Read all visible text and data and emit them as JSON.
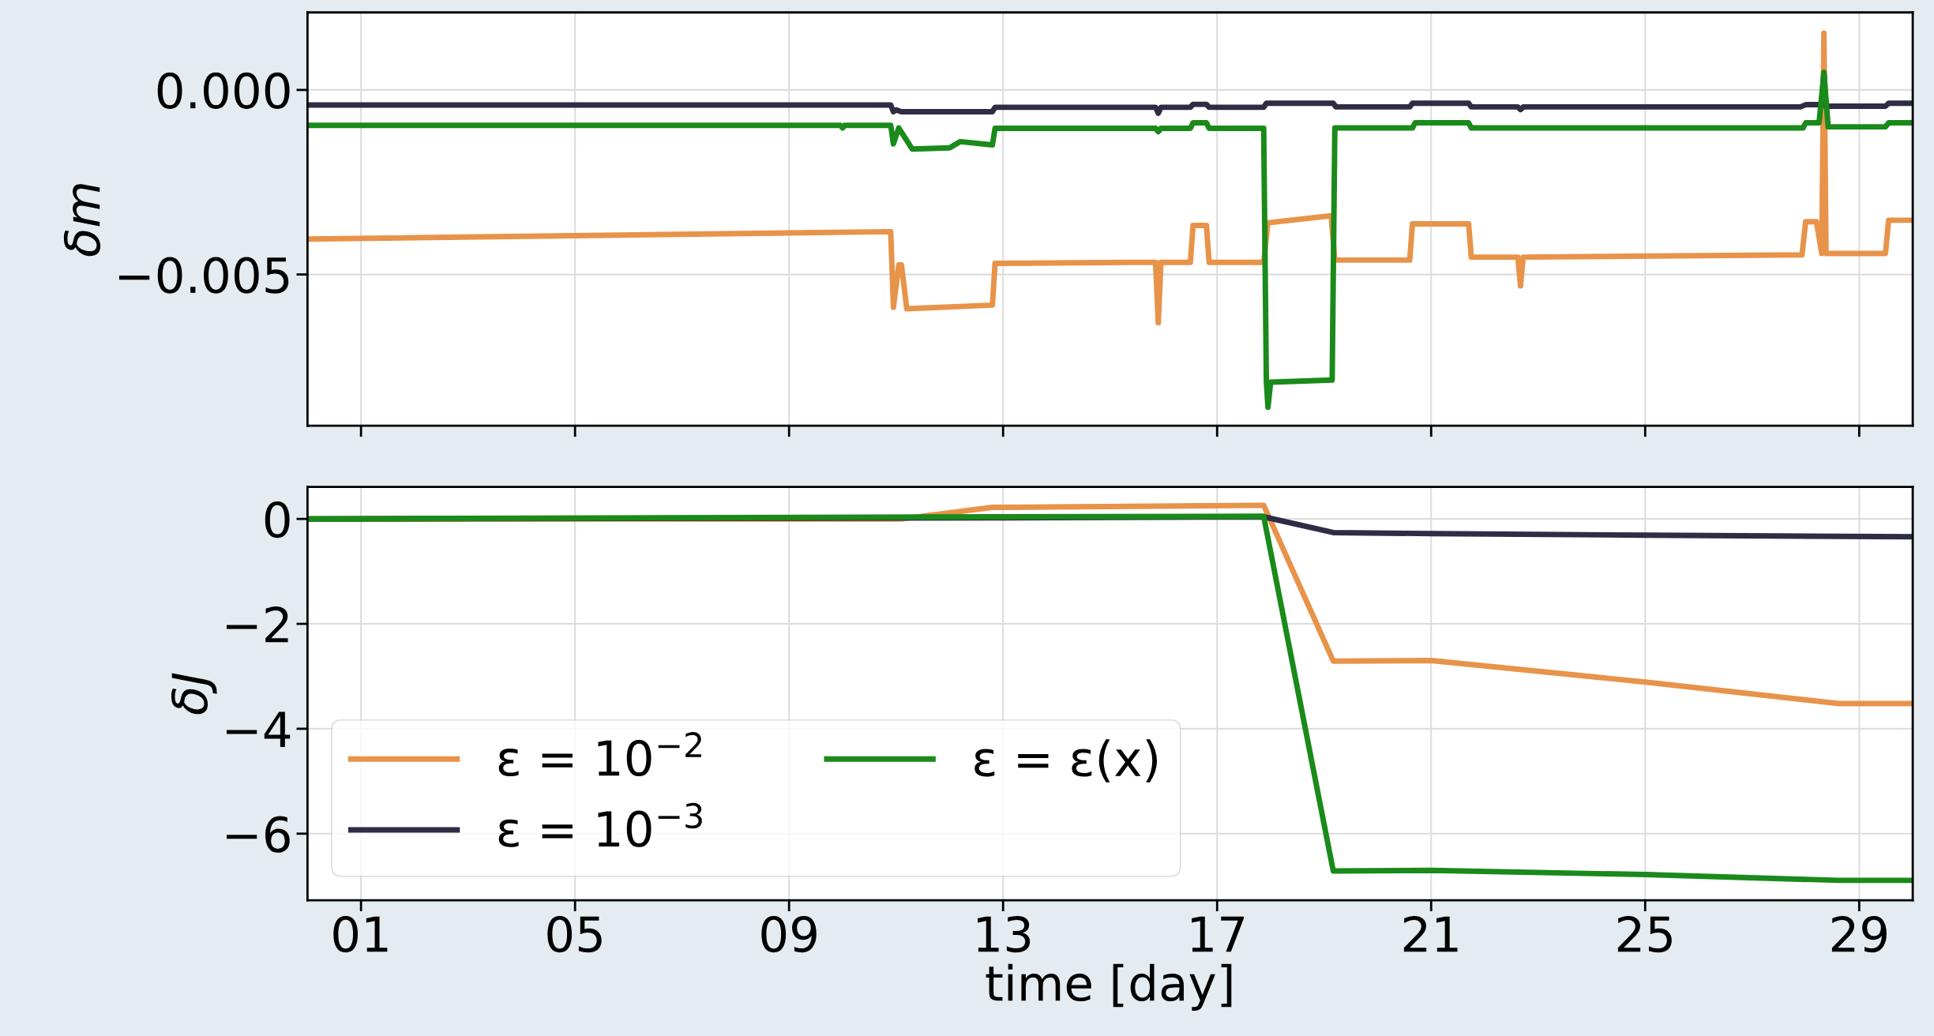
{
  "chart_data": [
    {
      "type": "line",
      "ylabel": "δm",
      "xlim": [
        0,
        30
      ],
      "xticks": [
        {
          "value": 1,
          "label": null
        },
        {
          "value": 5,
          "label": null
        },
        {
          "value": 9,
          "label": null
        },
        {
          "value": 13,
          "label": null
        },
        {
          "value": 17,
          "label": null
        },
        {
          "value": 21,
          "label": null
        },
        {
          "value": 25,
          "label": null
        },
        {
          "value": 29,
          "label": null
        }
      ],
      "ylim": [
        -0.0091,
        0.0021
      ],
      "yticks": [
        {
          "value": 0,
          "label": "0.000"
        },
        {
          "value": -0.005,
          "label": "−0.005"
        }
      ],
      "tick_labels": "y",
      "grid": true,
      "legend": false,
      "series": [
        {
          "color": "#e8934a",
          "x": [
            0,
            10.9,
            10.95,
            11.05,
            11.1,
            11.2,
            12.8,
            12.85,
            15.4,
            15.85,
            15.9,
            15.95,
            16.5,
            16.55,
            16.8,
            16.85,
            17.87,
            17.95,
            19.13,
            19.2,
            20.6,
            20.65,
            21.7,
            21.75,
            22.62,
            22.67,
            22.72,
            27.93,
            28.0,
            28.2,
            28.3,
            28.34,
            28.38,
            29.49,
            29.55,
            29.95
          ],
          "values": [
            -0.00404,
            -0.00384,
            -0.00589,
            -0.00474,
            -0.00474,
            -0.00593,
            -0.00583,
            -0.0047,
            -0.00467,
            -0.00467,
            -0.00631,
            -0.00467,
            -0.00467,
            -0.00367,
            -0.00367,
            -0.00467,
            -0.00467,
            -0.0036,
            -0.00341,
            -0.00461,
            -0.00461,
            -0.00363,
            -0.00363,
            -0.00453,
            -0.00453,
            -0.00531,
            -0.00453,
            -0.00447,
            -0.00357,
            -0.00357,
            -0.00443,
            0.00154,
            -0.00443,
            -0.00443,
            -0.00353,
            -0.00353
          ]
        },
        {
          "color": "#2e2d45",
          "x": [
            0,
            10.9,
            10.95,
            11.0,
            11.1,
            12.8,
            12.85,
            15.85,
            15.9,
            15.95,
            16.5,
            16.55,
            16.8,
            16.85,
            17.87,
            17.92,
            19.17,
            19.22,
            20.6,
            20.65,
            21.7,
            21.75,
            22.62,
            22.67,
            22.72,
            27.9,
            28.0,
            28.3,
            28.34,
            28.38,
            29.49,
            29.55,
            29.95
          ],
          "values": [
            -0.00041,
            -0.00041,
            -0.00059,
            -0.00054,
            -0.00059,
            -0.00059,
            -0.00047,
            -0.00047,
            -0.00063,
            -0.00047,
            -0.00047,
            -0.00039,
            -0.00039,
            -0.00047,
            -0.00047,
            -0.00036,
            -0.00036,
            -0.00046,
            -0.00046,
            -0.00036,
            -0.00036,
            -0.00046,
            -0.00046,
            -0.00053,
            -0.00046,
            -0.00046,
            -0.0004,
            -0.0004,
            0.00047,
            -0.00044,
            -0.00044,
            -0.00036,
            -0.00036
          ]
        },
        {
          "color": "#1a8a1a",
          "x": [
            0,
            9.96,
            10.0,
            10.04,
            10.9,
            10.95,
            11.05,
            11.3,
            12.0,
            12.2,
            12.8,
            12.85,
            15.85,
            15.9,
            15.95,
            16.5,
            16.55,
            16.8,
            16.85,
            17.87,
            17.92,
            17.95,
            18.0,
            19.15,
            19.2,
            20.65,
            20.7,
            21.7,
            21.75,
            27.95,
            28.0,
            28.25,
            28.34,
            28.42,
            29.49,
            29.55,
            29.95
          ],
          "values": [
            -0.00096,
            -0.00096,
            -0.00103,
            -0.00096,
            -0.00096,
            -0.00146,
            -0.00103,
            -0.0016,
            -0.00157,
            -0.0014,
            -0.00149,
            -0.00104,
            -0.00104,
            -0.00113,
            -0.00104,
            -0.00104,
            -0.00089,
            -0.00089,
            -0.00104,
            -0.00104,
            -0.00789,
            -0.0086,
            -0.00792,
            -0.00786,
            -0.00103,
            -0.00103,
            -0.00089,
            -0.00089,
            -0.00103,
            -0.00103,
            -0.00089,
            -0.00089,
            0.00047,
            -0.001,
            -0.001,
            -0.00089,
            -0.00089
          ]
        }
      ]
    },
    {
      "type": "line",
      "ylabel": "δJ",
      "xlabel": "time [day]",
      "xlim": [
        0,
        30
      ],
      "xticks": [
        {
          "value": 1,
          "label": "01"
        },
        {
          "value": 5,
          "label": "05"
        },
        {
          "value": 9,
          "label": "09"
        },
        {
          "value": 13,
          "label": "13"
        },
        {
          "value": 17,
          "label": "17"
        },
        {
          "value": 21,
          "label": "21"
        },
        {
          "value": 25,
          "label": "25"
        },
        {
          "value": 29,
          "label": "29"
        }
      ],
      "ylim": [
        -7.27,
        0.61
      ],
      "yticks": [
        {
          "value": 0,
          "label": "0"
        },
        {
          "value": -2,
          "label": "−2"
        },
        {
          "value": -4,
          "label": "−4"
        },
        {
          "value": -6,
          "label": "−6"
        }
      ],
      "grid": true,
      "legend": "bottom left",
      "series": [
        {
          "name": "ε = 10$^{−2}$",
          "color": "#e8934a",
          "x": [
            0,
            11.1,
            12.8,
            17.87,
            19.17,
            21.0,
            25.0,
            28.62,
            29.95
          ],
          "values": [
            0,
            0,
            0.22,
            0.26,
            -2.71,
            -2.7,
            -3.11,
            -3.52,
            -3.52
          ]
        },
        {
          "name": "ε = 10$^{−3}$",
          "color": "#2e2d45",
          "x": [
            0,
            12.8,
            17.87,
            19.17,
            21.0,
            25.0,
            29.95
          ],
          "values": [
            0,
            0.02,
            0.04,
            -0.26,
            -0.28,
            -0.31,
            -0.34
          ]
        },
        {
          "name": "ε = ε(x)",
          "color": "#1a8a1a",
          "x": [
            0,
            12.8,
            17.87,
            19.17,
            21.0,
            25.0,
            28.62,
            29.95
          ],
          "values": [
            0,
            0.04,
            0.05,
            -6.71,
            -6.7,
            -6.78,
            -6.89,
            -6.89
          ]
        }
      ]
    }
  ]
}
